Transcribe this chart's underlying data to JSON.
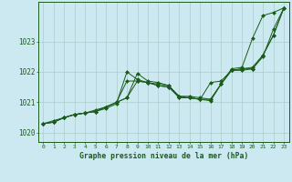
{
  "title": "Graphe pression niveau de la mer (hPa)",
  "background_color": "#cce8f0",
  "grid_color": "#aacccc",
  "line_color": "#1a5c1a",
  "marker_color": "#1a5c1a",
  "xlim": [
    -0.5,
    23.5
  ],
  "ylim": [
    1019.7,
    1024.3
  ],
  "yticks": [
    1020,
    1021,
    1022,
    1023
  ],
  "xticks": [
    0,
    1,
    2,
    3,
    4,
    5,
    6,
    7,
    8,
    9,
    10,
    11,
    12,
    13,
    14,
    15,
    16,
    17,
    18,
    19,
    20,
    21,
    22,
    23
  ],
  "series": [
    [
      1020.3,
      1020.4,
      1020.5,
      1020.6,
      1020.65,
      1020.75,
      1020.85,
      1021.0,
      1021.15,
      1021.7,
      1021.65,
      1021.6,
      1021.55,
      1021.2,
      1021.15,
      1021.1,
      1021.65,
      1021.7,
      1022.05,
      1022.1,
      1022.15,
      1022.55,
      1023.2,
      1024.1
    ],
    [
      1020.3,
      1020.35,
      1020.5,
      1020.6,
      1020.65,
      1020.7,
      1020.8,
      1020.95,
      1022.0,
      1021.75,
      1021.65,
      1021.55,
      1021.5,
      1021.2,
      1021.2,
      1021.15,
      1021.1,
      1021.6,
      1022.1,
      1022.15,
      1023.1,
      1023.85,
      1023.95,
      1024.1
    ],
    [
      1020.3,
      1020.35,
      1020.5,
      1020.6,
      1020.65,
      1020.7,
      1020.85,
      1021.0,
      1021.15,
      1021.95,
      1021.7,
      1021.65,
      1021.55,
      1021.15,
      1021.15,
      1021.1,
      1021.05,
      1021.6,
      1022.05,
      1022.05,
      1022.1,
      1022.5,
      1023.4,
      1024.1
    ],
    [
      1020.3,
      1020.35,
      1020.5,
      1020.6,
      1020.65,
      1020.7,
      1020.85,
      1021.0,
      1021.7,
      1021.7,
      1021.65,
      1021.55,
      1021.5,
      1021.15,
      1021.15,
      1021.1,
      1021.1,
      1021.6,
      1022.05,
      1022.1,
      1022.1,
      1022.55,
      1023.2,
      1024.1
    ]
  ]
}
